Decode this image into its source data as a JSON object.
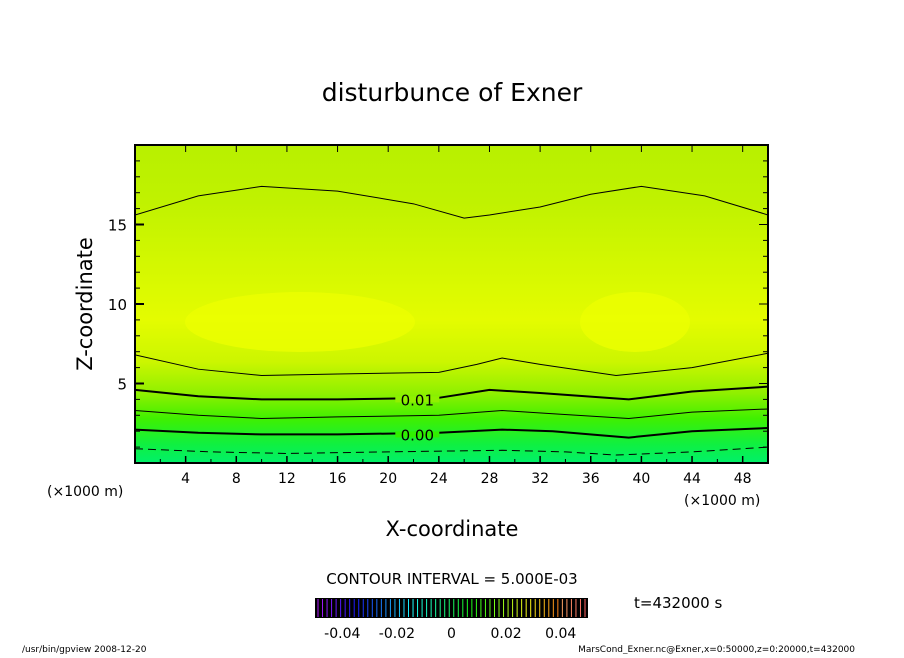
{
  "chart_data": {
    "type": "contour",
    "title": "disturbunce of Exner",
    "xlabel": "X-coordinate",
    "ylabel": "Z-coordinate",
    "x_unit": "(×1000 m)",
    "y_unit": "(×1000 m)",
    "xlim": [
      0,
      50
    ],
    "ylim": [
      0,
      20
    ],
    "xticks": [
      4,
      8,
      12,
      16,
      20,
      24,
      28,
      32,
      36,
      40,
      44,
      48
    ],
    "yticks": [
      5,
      10,
      15
    ],
    "contour_interval_label": "CONTOUR INTERVAL = 5.000E-03",
    "time_label": "t=432000 s",
    "colorbar": {
      "range": [
        -0.05,
        0.05
      ],
      "ticks": [
        "-0.04",
        "-0.02",
        "0",
        "0.02",
        "0.04"
      ]
    },
    "contours": [
      {
        "level": 0.015,
        "label": "",
        "thick": false,
        "dashed": false,
        "x": [
          0,
          5,
          10,
          16,
          22,
          26,
          28,
          32,
          36,
          40,
          45,
          50
        ],
        "y": [
          15.6,
          16.8,
          17.4,
          17.1,
          16.3,
          15.4,
          15.6,
          16.1,
          16.9,
          17.4,
          16.8,
          15.6
        ]
      },
      {
        "level": 0.015,
        "label": "",
        "thick": false,
        "dashed": false,
        "x": [
          0,
          5,
          10,
          16,
          24,
          27,
          29,
          32,
          38,
          44,
          50
        ],
        "y": [
          6.8,
          5.9,
          5.5,
          5.6,
          5.7,
          6.2,
          6.6,
          6.2,
          5.5,
          6.0,
          6.9
        ]
      },
      {
        "level": 0.01,
        "label": "0.01",
        "thick": true,
        "dashed": false,
        "x": [
          0,
          5,
          10,
          16,
          24,
          28,
          32,
          39,
          44,
          50
        ],
        "y": [
          4.6,
          4.2,
          4.0,
          4.0,
          4.1,
          4.6,
          4.4,
          4.0,
          4.5,
          4.8
        ]
      },
      {
        "level": 0.005,
        "label": "",
        "thick": false,
        "dashed": false,
        "x": [
          0,
          5,
          10,
          16,
          24,
          29,
          33,
          39,
          44,
          50
        ],
        "y": [
          3.3,
          3.0,
          2.8,
          2.9,
          3.0,
          3.3,
          3.1,
          2.8,
          3.2,
          3.4
        ]
      },
      {
        "level": 0.0,
        "label": "0.00",
        "thick": true,
        "dashed": false,
        "x": [
          0,
          5,
          10,
          16,
          24,
          29,
          33,
          39,
          44,
          50
        ],
        "y": [
          2.1,
          1.9,
          1.8,
          1.8,
          1.9,
          2.1,
          2.0,
          1.6,
          2.0,
          2.2
        ]
      },
      {
        "level": -0.005,
        "label": "",
        "thick": false,
        "dashed": true,
        "x": [
          0,
          6,
          12,
          20,
          29,
          34,
          38,
          44,
          50
        ],
        "y": [
          0.9,
          0.7,
          0.6,
          0.7,
          0.8,
          0.7,
          0.5,
          0.7,
          1.0
        ]
      }
    ]
  },
  "footer": {
    "left": "/usr/bin/gpview  2008-12-20",
    "right": "MarsCond_Exner.nc@Exner,x=0:50000,z=0:20000,t=432000"
  }
}
